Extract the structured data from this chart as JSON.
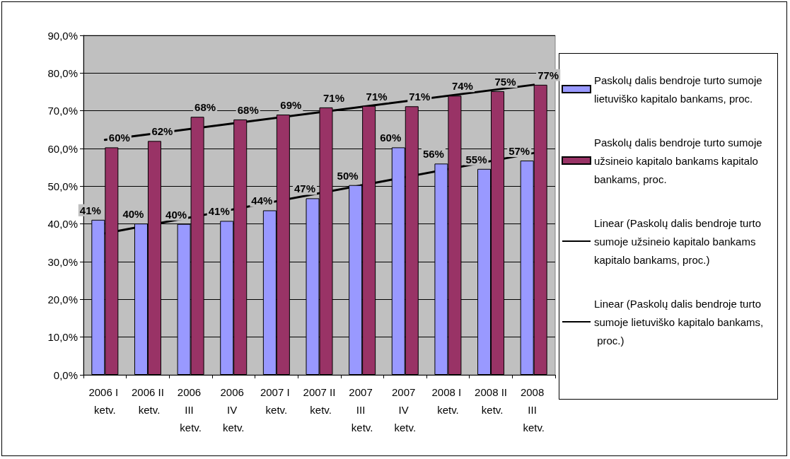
{
  "chart_data": {
    "type": "bar",
    "categories": [
      "2006 I ketv.",
      "2006 II ketv.",
      "2006 III ketv.",
      "2006 IV ketv.",
      "2007 I ketv.",
      "2007 II ketv.",
      "2007 III ketv.",
      "2007 IV ketv.",
      "2008 I ketv.",
      "2008 II ketv.",
      "2008 III ketv."
    ],
    "series": [
      {
        "name": "Paskolų dalis bendroje turto sumoje lietuviško kapitalo bankams, proc.",
        "color": "#9999ff",
        "values": [
          41.1,
          40.1,
          40.0,
          40.8,
          43.6,
          46.8,
          50.3,
          60.3,
          56.0,
          54.6,
          56.8
        ],
        "value_labels": [
          "41%",
          "40%",
          "40%",
          "41%",
          "44%",
          "47%",
          "50%",
          "60%",
          "56%",
          "55%",
          "57%"
        ]
      },
      {
        "name": "Paskolų dalis bendroje turto sumoje užsineio kapitalo bankams kapitalo bankams, proc.",
        "color": "#993366",
        "values": [
          60.3,
          62.0,
          68.4,
          67.7,
          69.0,
          70.9,
          71.3,
          71.2,
          74.0,
          75.2,
          76.9
        ],
        "value_labels": [
          "60%",
          "62%",
          "68%",
          "68%",
          "69%",
          "71%",
          "71%",
          "71%",
          "74%",
          "75%",
          "77%"
        ]
      },
      {
        "name": "Linear (Paskolų dalis bendroje turto sumoje užsineio kapitalo bankams kapitalo bankams, proc.)",
        "type": "line",
        "color": "#000000",
        "x": [
          "2006 I ketv.",
          "2008 III ketv."
        ],
        "values": [
          62.3,
          76.9
        ]
      },
      {
        "name": "Linear (Paskolų dalis bendroje turto sumoje lietuviško kapitalo bankams, proc.)",
        "type": "line",
        "color": "#000000",
        "x": [
          "2006 I ketv.",
          "2008 III ketv."
        ],
        "values": [
          37.5,
          58.8
        ]
      }
    ],
    "ylim": [
      0,
      90
    ],
    "yticks": [
      {
        "value": 0,
        "label": "0,0%"
      },
      {
        "value": 10,
        "label": "10,0%"
      },
      {
        "value": 20,
        "label": "20,0%"
      },
      {
        "value": 30,
        "label": "30,0%"
      },
      {
        "value": 40,
        "label": "40,0%"
      },
      {
        "value": 50,
        "label": "50,0%"
      },
      {
        "value": 60,
        "label": "60,0%"
      },
      {
        "value": 70,
        "label": "70,0%"
      },
      {
        "value": 80,
        "label": "80,0%"
      },
      {
        "value": 90,
        "label": "90,0%"
      }
    ],
    "grid": "y",
    "legend": "right",
    "marker": "none",
    "line_style": "solid"
  }
}
